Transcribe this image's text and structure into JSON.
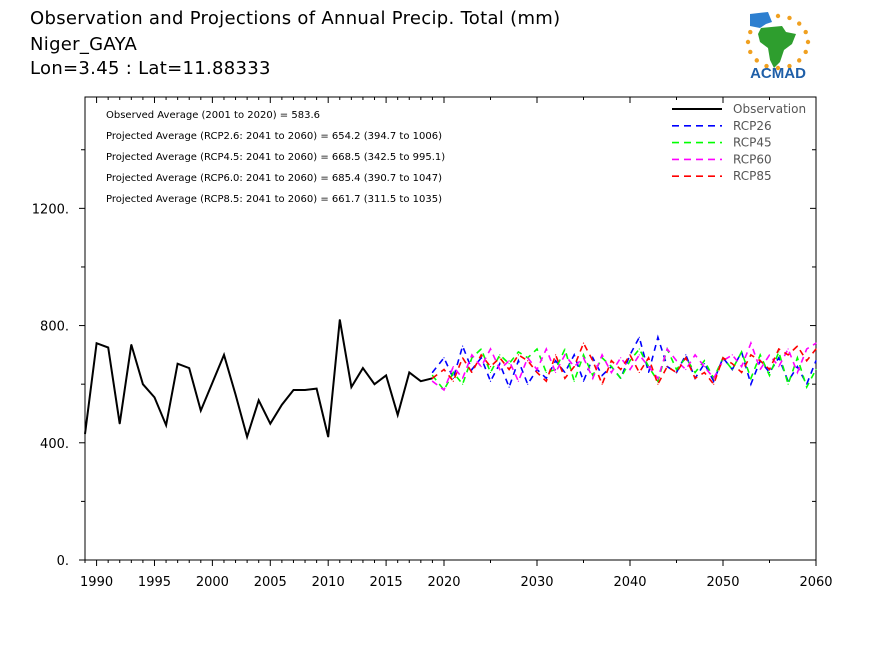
{
  "header": {
    "title_line1": "Observation and Projections of Annual Precip. Total (mm)",
    "title_line2": "Niger_GAYA",
    "title_line3": "Lon=3.45 : Lat=11.88333"
  },
  "logo": {
    "text": "ACMAD",
    "icon": "africa-logo-icon",
    "colors": {
      "africa": "#2e9e2e",
      "text": "#1f5fa8",
      "rays": "#f0a020",
      "drop": "#2d7fd0"
    }
  },
  "annotations": [
    "Observed Average (2001 to 2020) = 583.6",
    "Projected Average (RCP2.6: 2041 to 2060) = 654.2 (394.7 to 1006)",
    "Projected Average (RCP4.5: 2041 to 2060) = 668.5 (342.5 to 995.1)",
    "Projected Average (RCP6.0: 2041 to 2060) = 685.4 (390.7 to 1047)",
    "Projected Average (RCP8.5: 2041 to 2060) = 661.7 (311.5 to 1035)"
  ],
  "chart_data": {
    "type": "line",
    "title": "Observation and Projections of Annual Precip. Total (mm)",
    "xlabel": "",
    "ylabel": "",
    "xlim": [
      1989,
      2060
    ],
    "ylim": [
      0,
      1580
    ],
    "grid": false,
    "legend_position": "top-right",
    "x_ticks": [
      1990,
      1995,
      2000,
      2005,
      2010,
      2015,
      2020,
      2030,
      2040,
      2050,
      2060
    ],
    "y_ticks": [
      0,
      400,
      800,
      1200
    ],
    "y_tick_labels": [
      "0.",
      "400.",
      "800.",
      "1200."
    ],
    "series": [
      {
        "name": "Observation",
        "color": "#000000",
        "dash": "solid",
        "x": [
          1989,
          1990,
          1991,
          1992,
          1993,
          1994,
          1995,
          1996,
          1997,
          1998,
          1999,
          2000,
          2001,
          2002,
          2003,
          2004,
          2005,
          2006,
          2007,
          2008,
          2009,
          2010,
          2011,
          2012,
          2013,
          2014,
          2015,
          2016,
          2017,
          2018,
          2019
        ],
        "values": [
          430,
          740,
          725,
          465,
          735,
          600,
          555,
          460,
          670,
          655,
          510,
          605,
          700,
          565,
          420,
          545,
          465,
          530,
          580,
          580,
          585,
          420,
          820,
          590,
          655,
          600,
          630,
          495,
          640,
          610,
          620
        ]
      },
      {
        "name": "RCP26",
        "color": "#0000ff",
        "dash": "dashed",
        "x": [
          2019,
          2020,
          2021,
          2022,
          2023,
          2024,
          2025,
          2026,
          2027,
          2028,
          2029,
          2030,
          2031,
          2032,
          2033,
          2034,
          2035,
          2036,
          2037,
          2038,
          2039,
          2040,
          2041,
          2042,
          2043,
          2044,
          2045,
          2046,
          2047,
          2048,
          2049,
          2050,
          2051,
          2052,
          2053,
          2054,
          2055,
          2056,
          2057,
          2058,
          2059,
          2060
        ],
        "values": [
          640,
          690,
          620,
          730,
          650,
          690,
          610,
          670,
          590,
          680,
          600,
          650,
          620,
          680,
          640,
          700,
          610,
          690,
          630,
          660,
          620,
          700,
          760,
          640,
          760,
          660,
          640,
          700,
          620,
          670,
          610,
          690,
          650,
          710,
          600,
          680,
          640,
          690,
          610,
          660,
          600,
          680
        ]
      },
      {
        "name": "RCP45",
        "color": "#00ff00",
        "dash": "dashed",
        "x": [
          2019,
          2020,
          2021,
          2022,
          2023,
          2024,
          2025,
          2026,
          2027,
          2028,
          2029,
          2030,
          2031,
          2032,
          2033,
          2034,
          2035,
          2036,
          2037,
          2038,
          2039,
          2040,
          2041,
          2042,
          2043,
          2044,
          2045,
          2046,
          2047,
          2048,
          2049,
          2050,
          2051,
          2052,
          2053,
          2054,
          2055,
          2056,
          2057,
          2058,
          2059,
          2060
        ],
        "values": [
          630,
          580,
          640,
          600,
          690,
          720,
          640,
          700,
          670,
          710,
          690,
          720,
          640,
          650,
          720,
          610,
          700,
          630,
          690,
          660,
          620,
          680,
          720,
          660,
          610,
          720,
          650,
          690,
          640,
          680,
          620,
          690,
          650,
          710,
          620,
          700,
          630,
          710,
          600,
          690,
          590,
          650
        ]
      },
      {
        "name": "RCP60",
        "color": "#ff00ff",
        "dash": "dashed",
        "x": [
          2019,
          2020,
          2021,
          2022,
          2023,
          2024,
          2025,
          2026,
          2027,
          2028,
          2029,
          2030,
          2031,
          2032,
          2033,
          2034,
          2035,
          2036,
          2037,
          2038,
          2039,
          2040,
          2041,
          2042,
          2043,
          2044,
          2045,
          2046,
          2047,
          2048,
          2049,
          2050,
          2051,
          2052,
          2053,
          2054,
          2055,
          2056,
          2057,
          2058,
          2059,
          2060
        ],
        "values": [
          610,
          580,
          660,
          620,
          700,
          660,
          720,
          650,
          680,
          610,
          690,
          650,
          720,
          640,
          700,
          660,
          690,
          620,
          700,
          640,
          690,
          650,
          700,
          660,
          620,
          720,
          680,
          650,
          700,
          660,
          620,
          680,
          700,
          660,
          740,
          650,
          700,
          660,
          720,
          640,
          720,
          740
        ]
      },
      {
        "name": "RCP85",
        "color": "#ff0000",
        "dash": "dashed",
        "x": [
          2019,
          2020,
          2021,
          2022,
          2023,
          2024,
          2025,
          2026,
          2027,
          2028,
          2029,
          2030,
          2031,
          2032,
          2033,
          2034,
          2035,
          2036,
          2037,
          2038,
          2039,
          2040,
          2041,
          2042,
          2043,
          2044,
          2045,
          2046,
          2047,
          2048,
          2049,
          2050,
          2051,
          2052,
          2053,
          2054,
          2055,
          2056,
          2057,
          2058,
          2059,
          2060
        ],
        "values": [
          620,
          650,
          610,
          690,
          640,
          700,
          660,
          690,
          650,
          700,
          680,
          640,
          610,
          700,
          620,
          660,
          740,
          680,
          600,
          680,
          650,
          700,
          640,
          690,
          600,
          660,
          640,
          690,
          620,
          640,
          600,
          690,
          670,
          640,
          700,
          680,
          650,
          720,
          700,
          730,
          680,
          720
        ]
      }
    ]
  }
}
